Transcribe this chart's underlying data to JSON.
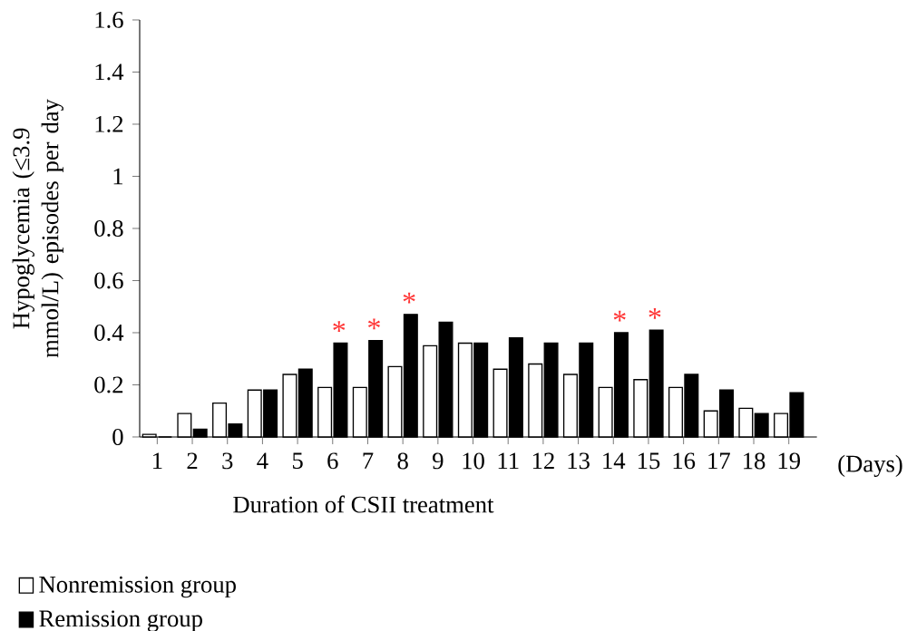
{
  "chart_data": {
    "type": "bar",
    "xlabel": "Duration of CSII treatment",
    "ylabel": "Hypoglycemia (≤3.9 mmol/L) episodes per day",
    "categories": [
      "1",
      "2",
      "3",
      "4",
      "5",
      "6",
      "7",
      "8",
      "9",
      "10",
      "11",
      "12",
      "13",
      "14",
      "15",
      "16",
      "17",
      "18",
      "19"
    ],
    "series": [
      {
        "name": "Nonremission group",
        "color": "#ffffff",
        "values": [
          0.01,
          0.09,
          0.13,
          0.18,
          0.24,
          0.19,
          0.19,
          0.27,
          0.35,
          0.36,
          0.26,
          0.28,
          0.24,
          0.19,
          0.22,
          0.19,
          0.1,
          0.11,
          0.09
        ]
      },
      {
        "name": "Remission group",
        "color": "#000000",
        "values": [
          0,
          0.03,
          0.05,
          0.18,
          0.26,
          0.36,
          0.37,
          0.47,
          0.44,
          0.36,
          0.38,
          0.36,
          0.36,
          0.4,
          0.41,
          0.24,
          0.18,
          0.09,
          0.17
        ]
      }
    ],
    "ylim": [
      0,
      1.6
    ],
    "yticks": [
      0,
      0.2,
      0.4,
      0.6,
      0.8,
      1,
      1.2,
      1.4,
      1.6
    ],
    "legend": "bottom left",
    "grid": false,
    "annotations": [
      {
        "text": "*",
        "x": "6",
        "y": 0.36
      },
      {
        "text": "*",
        "x": "7",
        "y": 0.37
      },
      {
        "text": "*",
        "x": "8",
        "y": 0.47
      },
      {
        "text": "*",
        "x": "14",
        "y": 0.4
      },
      {
        "text": "*",
        "x": "15",
        "y": 0.41
      },
      "(Days)"
    ]
  }
}
